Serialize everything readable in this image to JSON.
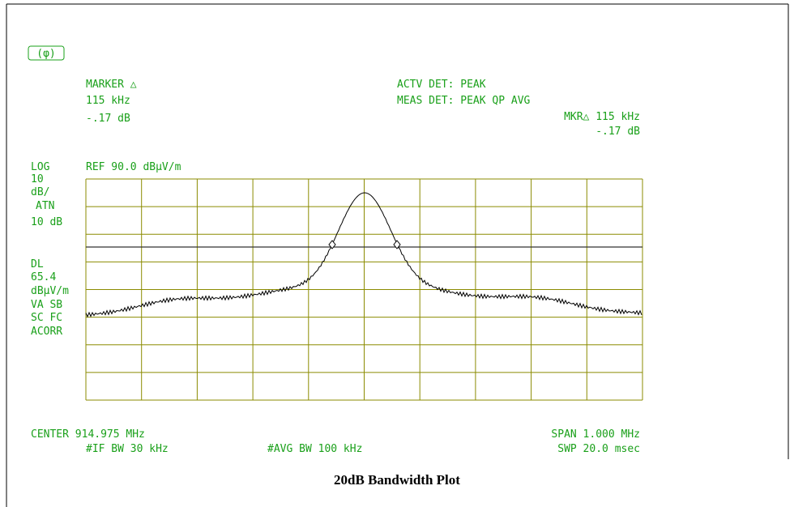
{
  "logo": "(φ)",
  "header": {
    "marker_label": "MARKER △",
    "marker_freq": "115 kHz",
    "marker_level": "-.17 dB",
    "actv_det": "ACTV DET: PEAK",
    "meas_det": "MEAS DET: PEAK QP AVG",
    "mkr_freq": "MKR△ 115 kHz",
    "mkr_level": "-.17 dB"
  },
  "left_panel": [
    "LOG",
    "10",
    "dB/",
    "ATN",
    "10 dB",
    "DL",
    "65.4",
    "dBµV/m",
    "VA SB",
    "SC FC",
    "ACORR"
  ],
  "ref_level": "REF 90.0 dBµV/m",
  "footer": {
    "center": "CENTER 914.975 MHz",
    "span": "SPAN 1.000 MHz",
    "if_bw": "#IF BW 30 kHz",
    "avg_bw": "#AVG BW 100 kHz",
    "sweep": "SWP 20.0 msec"
  },
  "caption": "20dB Bandwidth  Plot"
}
